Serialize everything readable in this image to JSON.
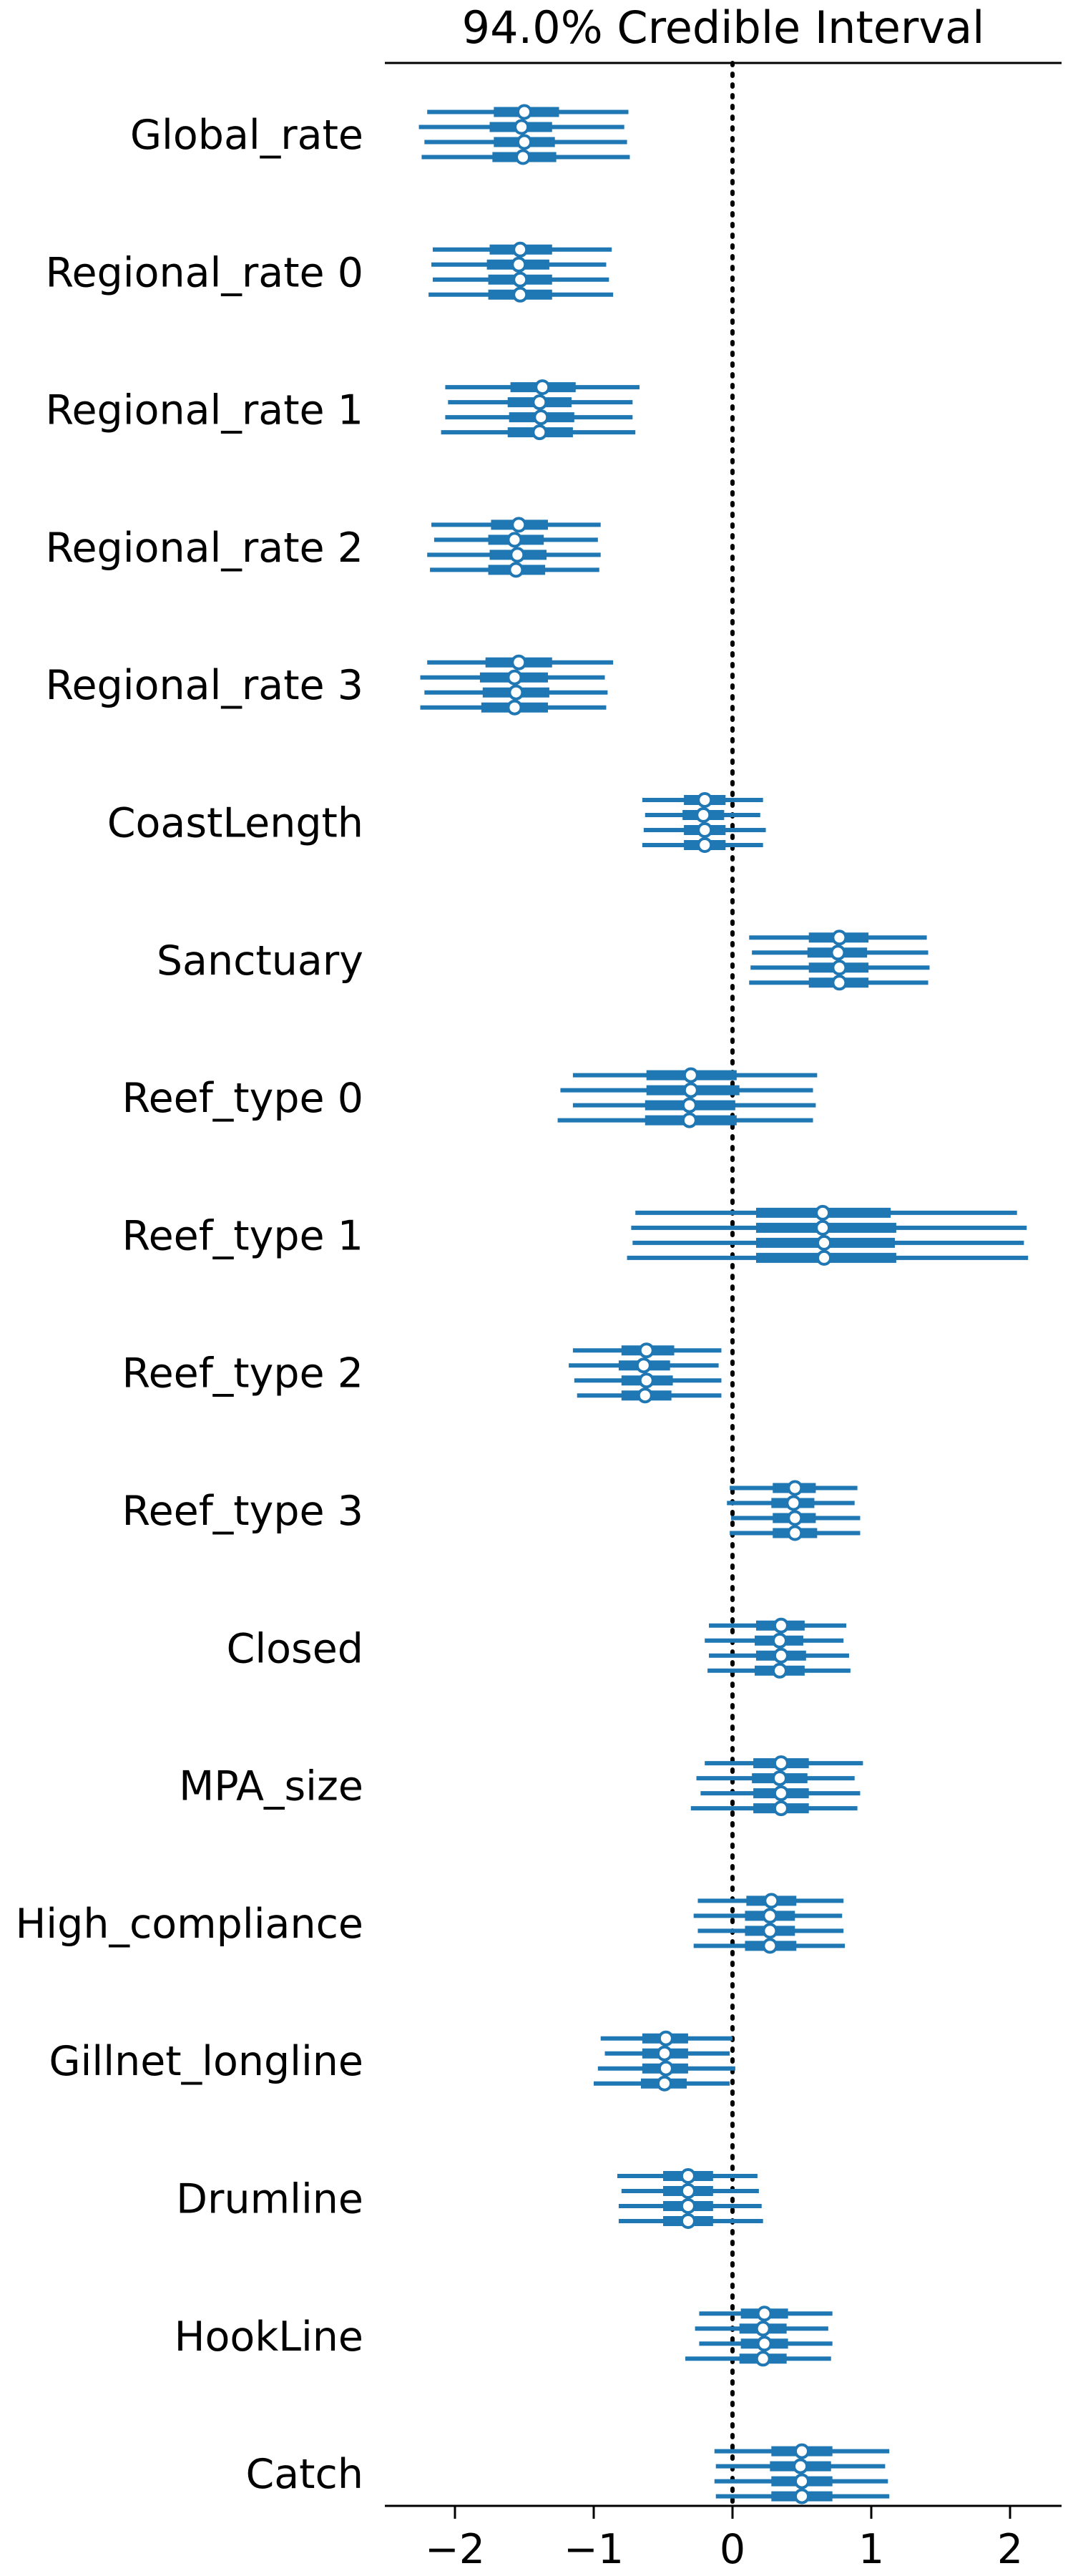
{
  "chart_data": {
    "type": "forest",
    "title": "94.0% Credible Interval",
    "xlim": [
      -2.5,
      2.35
    ],
    "xticks": [
      -2,
      -1,
      0,
      1,
      2
    ],
    "xtick_labels": [
      "−2",
      "−1",
      "0",
      "1",
      "2"
    ],
    "reference_line_x": 0,
    "series_color": "#1f77b4",
    "variables": [
      {
        "name": "Global_rate",
        "chains": [
          {
            "median": -1.5,
            "hdi94": [
              -2.2,
              -0.75
            ],
            "iqr": [
              -1.72,
              -1.25
            ]
          },
          {
            "median": -1.52,
            "hdi94": [
              -2.26,
              -0.78
            ],
            "iqr": [
              -1.75,
              -1.3
            ]
          },
          {
            "median": -1.5,
            "hdi94": [
              -2.22,
              -0.76
            ],
            "iqr": [
              -1.72,
              -1.28
            ]
          },
          {
            "median": -1.51,
            "hdi94": [
              -2.24,
              -0.74
            ],
            "iqr": [
              -1.73,
              -1.27
            ]
          }
        ]
      },
      {
        "name": "Regional_rate 0",
        "chains": [
          {
            "median": -1.53,
            "hdi94": [
              -2.16,
              -0.87
            ],
            "iqr": [
              -1.75,
              -1.3
            ]
          },
          {
            "median": -1.54,
            "hdi94": [
              -2.17,
              -0.91
            ],
            "iqr": [
              -1.77,
              -1.32
            ]
          },
          {
            "median": -1.53,
            "hdi94": [
              -2.16,
              -0.89
            ],
            "iqr": [
              -1.76,
              -1.3
            ]
          },
          {
            "median": -1.53,
            "hdi94": [
              -2.19,
              -0.86
            ],
            "iqr": [
              -1.76,
              -1.3
            ]
          }
        ]
      },
      {
        "name": "Regional_rate 1",
        "chains": [
          {
            "median": -1.37,
            "hdi94": [
              -2.07,
              -0.67
            ],
            "iqr": [
              -1.6,
              -1.13
            ]
          },
          {
            "median": -1.39,
            "hdi94": [
              -2.05,
              -0.72
            ],
            "iqr": [
              -1.62,
              -1.16
            ]
          },
          {
            "median": -1.38,
            "hdi94": [
              -2.07,
              -0.72
            ],
            "iqr": [
              -1.61,
              -1.14
            ]
          },
          {
            "median": -1.39,
            "hdi94": [
              -2.1,
              -0.7
            ],
            "iqr": [
              -1.62,
              -1.15
            ]
          }
        ]
      },
      {
        "name": "Regional_rate 2",
        "chains": [
          {
            "median": -1.54,
            "hdi94": [
              -2.17,
              -0.95
            ],
            "iqr": [
              -1.74,
              -1.33
            ]
          },
          {
            "median": -1.57,
            "hdi94": [
              -2.15,
              -0.97
            ],
            "iqr": [
              -1.76,
              -1.36
            ]
          },
          {
            "median": -1.55,
            "hdi94": [
              -2.2,
              -0.95
            ],
            "iqr": [
              -1.75,
              -1.34
            ]
          },
          {
            "median": -1.56,
            "hdi94": [
              -2.18,
              -0.96
            ],
            "iqr": [
              -1.76,
              -1.35
            ]
          }
        ]
      },
      {
        "name": "Regional_rate 3",
        "chains": [
          {
            "median": -1.54,
            "hdi94": [
              -2.2,
              -0.86
            ],
            "iqr": [
              -1.78,
              -1.3
            ]
          },
          {
            "median": -1.57,
            "hdi94": [
              -2.25,
              -0.92
            ],
            "iqr": [
              -1.82,
              -1.33
            ]
          },
          {
            "median": -1.56,
            "hdi94": [
              -2.22,
              -0.9
            ],
            "iqr": [
              -1.8,
              -1.32
            ]
          },
          {
            "median": -1.57,
            "hdi94": [
              -2.25,
              -0.91
            ],
            "iqr": [
              -1.81,
              -1.33
            ]
          }
        ]
      },
      {
        "name": "CoastLength",
        "chains": [
          {
            "median": -0.2,
            "hdi94": [
              -0.65,
              0.22
            ],
            "iqr": [
              -0.35,
              -0.05
            ]
          },
          {
            "median": -0.21,
            "hdi94": [
              -0.63,
              0.2
            ],
            "iqr": [
              -0.36,
              -0.06
            ]
          },
          {
            "median": -0.2,
            "hdi94": [
              -0.64,
              0.24
            ],
            "iqr": [
              -0.35,
              -0.05
            ]
          },
          {
            "median": -0.2,
            "hdi94": [
              -0.65,
              0.22
            ],
            "iqr": [
              -0.35,
              -0.05
            ]
          }
        ]
      },
      {
        "name": "Sanctuary",
        "chains": [
          {
            "median": 0.77,
            "hdi94": [
              0.12,
              1.4
            ],
            "iqr": [
              0.55,
              0.98
            ]
          },
          {
            "median": 0.76,
            "hdi94": [
              0.14,
              1.41
            ],
            "iqr": [
              0.54,
              0.97
            ]
          },
          {
            "median": 0.77,
            "hdi94": [
              0.13,
              1.42
            ],
            "iqr": [
              0.55,
              0.98
            ]
          },
          {
            "median": 0.77,
            "hdi94": [
              0.12,
              1.41
            ],
            "iqr": [
              0.55,
              0.98
            ]
          }
        ]
      },
      {
        "name": "Reef_type 0",
        "chains": [
          {
            "median": -0.3,
            "hdi94": [
              -1.15,
              0.61
            ],
            "iqr": [
              -0.62,
              0.03
            ]
          },
          {
            "median": -0.3,
            "hdi94": [
              -1.24,
              0.58
            ],
            "iqr": [
              -0.62,
              0.05
            ]
          },
          {
            "median": -0.31,
            "hdi94": [
              -1.15,
              0.6
            ],
            "iqr": [
              -0.63,
              0.02
            ]
          },
          {
            "median": -0.31,
            "hdi94": [
              -1.26,
              0.58
            ],
            "iqr": [
              -0.63,
              0.03
            ]
          }
        ]
      },
      {
        "name": "Reef_type 1",
        "chains": [
          {
            "median": 0.65,
            "hdi94": [
              -0.7,
              2.05
            ],
            "iqr": [
              0.17,
              1.14
            ]
          },
          {
            "median": 0.65,
            "hdi94": [
              -0.73,
              2.12
            ],
            "iqr": [
              0.17,
              1.18
            ]
          },
          {
            "median": 0.66,
            "hdi94": [
              -0.72,
              2.1
            ],
            "iqr": [
              0.17,
              1.17
            ]
          },
          {
            "median": 0.66,
            "hdi94": [
              -0.76,
              2.13
            ],
            "iqr": [
              0.17,
              1.18
            ]
          }
        ]
      },
      {
        "name": "Reef_type 2",
        "chains": [
          {
            "median": -0.62,
            "hdi94": [
              -1.15,
              -0.08
            ],
            "iqr": [
              -0.8,
              -0.42
            ]
          },
          {
            "median": -0.64,
            "hdi94": [
              -1.18,
              -0.1
            ],
            "iqr": [
              -0.82,
              -0.45
            ]
          },
          {
            "median": -0.62,
            "hdi94": [
              -1.14,
              -0.08
            ],
            "iqr": [
              -0.8,
              -0.43
            ]
          },
          {
            "median": -0.63,
            "hdi94": [
              -1.12,
              -0.08
            ],
            "iqr": [
              -0.8,
              -0.44
            ]
          }
        ]
      },
      {
        "name": "Reef_type 3",
        "chains": [
          {
            "median": 0.45,
            "hdi94": [
              -0.02,
              0.9
            ],
            "iqr": [
              0.29,
              0.6
            ]
          },
          {
            "median": 0.44,
            "hdi94": [
              -0.04,
              0.88
            ],
            "iqr": [
              0.28,
              0.59
            ]
          },
          {
            "median": 0.45,
            "hdi94": [
              -0.01,
              0.92
            ],
            "iqr": [
              0.29,
              0.6
            ]
          },
          {
            "median": 0.45,
            "hdi94": [
              -0.02,
              0.92
            ],
            "iqr": [
              0.29,
              0.61
            ]
          }
        ]
      },
      {
        "name": "Closed",
        "chains": [
          {
            "median": 0.35,
            "hdi94": [
              -0.17,
              0.82
            ],
            "iqr": [
              0.17,
              0.52
            ]
          },
          {
            "median": 0.34,
            "hdi94": [
              -0.2,
              0.8
            ],
            "iqr": [
              0.16,
              0.51
            ]
          },
          {
            "median": 0.35,
            "hdi94": [
              -0.17,
              0.84
            ],
            "iqr": [
              0.17,
              0.53
            ]
          },
          {
            "median": 0.34,
            "hdi94": [
              -0.18,
              0.85
            ],
            "iqr": [
              0.16,
              0.52
            ]
          }
        ]
      },
      {
        "name": "MPA_size",
        "chains": [
          {
            "median": 0.35,
            "hdi94": [
              -0.2,
              0.94
            ],
            "iqr": [
              0.15,
              0.55
            ]
          },
          {
            "median": 0.34,
            "hdi94": [
              -0.26,
              0.88
            ],
            "iqr": [
              0.14,
              0.54
            ]
          },
          {
            "median": 0.35,
            "hdi94": [
              -0.23,
              0.92
            ],
            "iqr": [
              0.15,
              0.55
            ]
          },
          {
            "median": 0.35,
            "hdi94": [
              -0.3,
              0.9
            ],
            "iqr": [
              0.15,
              0.55
            ]
          }
        ]
      },
      {
        "name": "High_compliance",
        "chains": [
          {
            "median": 0.28,
            "hdi94": [
              -0.25,
              0.8
            ],
            "iqr": [
              0.1,
              0.46
            ]
          },
          {
            "median": 0.27,
            "hdi94": [
              -0.28,
              0.79
            ],
            "iqr": [
              0.09,
              0.45
            ]
          },
          {
            "median": 0.27,
            "hdi94": [
              -0.25,
              0.8
            ],
            "iqr": [
              0.09,
              0.45
            ]
          },
          {
            "median": 0.27,
            "hdi94": [
              -0.28,
              0.81
            ],
            "iqr": [
              0.09,
              0.46
            ]
          }
        ]
      },
      {
        "name": "Gillnet_longline",
        "chains": [
          {
            "median": -0.48,
            "hdi94": [
              -0.95,
              0.0
            ],
            "iqr": [
              -0.65,
              -0.32
            ]
          },
          {
            "median": -0.49,
            "hdi94": [
              -0.92,
              -0.02
            ],
            "iqr": [
              -0.65,
              -0.32
            ]
          },
          {
            "median": -0.48,
            "hdi94": [
              -0.97,
              0.02
            ],
            "iqr": [
              -0.65,
              -0.32
            ]
          },
          {
            "median": -0.49,
            "hdi94": [
              -1.0,
              -0.02
            ],
            "iqr": [
              -0.66,
              -0.33
            ]
          }
        ]
      },
      {
        "name": "Drumline",
        "chains": [
          {
            "median": -0.32,
            "hdi94": [
              -0.83,
              0.18
            ],
            "iqr": [
              -0.5,
              -0.14
            ]
          },
          {
            "median": -0.32,
            "hdi94": [
              -0.8,
              0.19
            ],
            "iqr": [
              -0.5,
              -0.14
            ]
          },
          {
            "median": -0.32,
            "hdi94": [
              -0.82,
              0.21
            ],
            "iqr": [
              -0.5,
              -0.14
            ]
          },
          {
            "median": -0.32,
            "hdi94": [
              -0.82,
              0.22
            ],
            "iqr": [
              -0.5,
              -0.14
            ]
          }
        ]
      },
      {
        "name": "HookLine",
        "chains": [
          {
            "median": 0.23,
            "hdi94": [
              -0.24,
              0.72
            ],
            "iqr": [
              0.06,
              0.4
            ]
          },
          {
            "median": 0.22,
            "hdi94": [
              -0.27,
              0.69
            ],
            "iqr": [
              0.05,
              0.39
            ]
          },
          {
            "median": 0.23,
            "hdi94": [
              -0.24,
              0.72
            ],
            "iqr": [
              0.06,
              0.4
            ]
          },
          {
            "median": 0.22,
            "hdi94": [
              -0.34,
              0.71
            ],
            "iqr": [
              0.05,
              0.39
            ]
          }
        ]
      },
      {
        "name": "Catch",
        "chains": [
          {
            "median": 0.5,
            "hdi94": [
              -0.13,
              1.13
            ],
            "iqr": [
              0.28,
              0.72
            ]
          },
          {
            "median": 0.49,
            "hdi94": [
              -0.12,
              1.1
            ],
            "iqr": [
              0.27,
              0.71
            ]
          },
          {
            "median": 0.5,
            "hdi94": [
              -0.13,
              1.12
            ],
            "iqr": [
              0.28,
              0.72
            ]
          },
          {
            "median": 0.5,
            "hdi94": [
              -0.12,
              1.13
            ],
            "iqr": [
              0.28,
              0.72
            ]
          }
        ]
      }
    ]
  }
}
